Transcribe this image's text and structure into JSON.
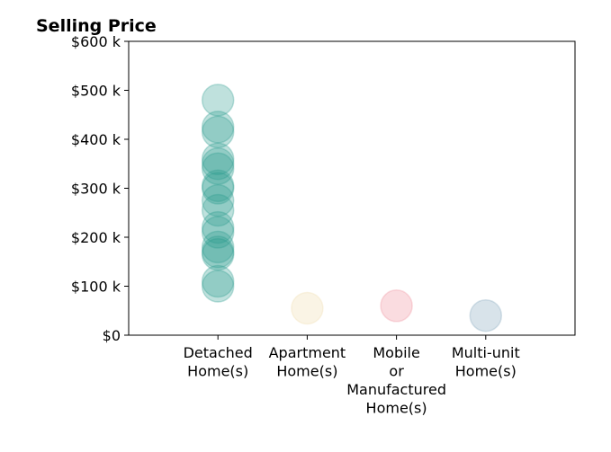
{
  "chart_data": {
    "type": "scatter",
    "title": "Selling Price",
    "xlabel": "",
    "ylabel": "",
    "categories": [
      [
        "Detached",
        "Home(s)"
      ],
      [
        "Apartment",
        "Home(s)"
      ],
      [
        "Mobile",
        "or",
        "Manufactured",
        "Home(s)"
      ],
      [
        "Multi-unit",
        "Home(s)"
      ]
    ],
    "y_ticks": [
      "$0",
      "$100 k",
      "$200 k",
      "$300 k",
      "$400 k",
      "$500 k",
      "$600 k"
    ],
    "ylim": [
      0,
      600
    ],
    "xlim": [
      -1,
      4
    ],
    "grid": false,
    "colors": [
      "#2a9d8f",
      "#f0d9a8",
      "#f08a98",
      "#7fa3b8"
    ],
    "series": [
      {
        "category_index": 0,
        "values": [
          480,
          425,
          415,
          360,
          350,
          340,
          305,
          300,
          275,
          255,
          220,
          210,
          180,
          170,
          165,
          110,
          100
        ]
      },
      {
        "category_index": 1,
        "values": [
          55
        ]
      },
      {
        "category_index": 2,
        "values": [
          60
        ]
      },
      {
        "category_index": 3,
        "values": [
          40
        ]
      }
    ]
  }
}
